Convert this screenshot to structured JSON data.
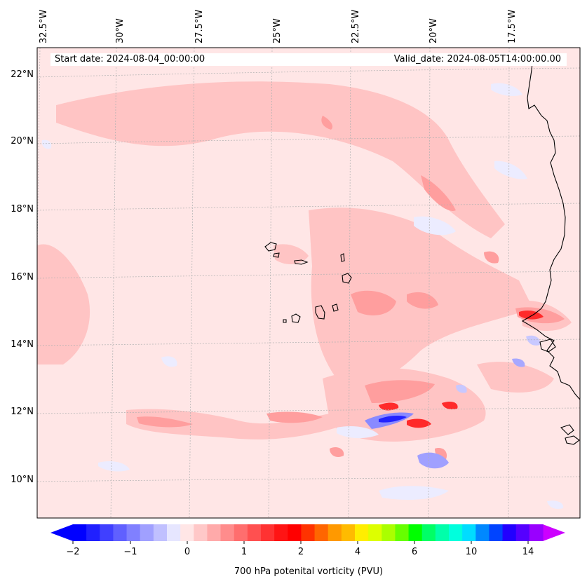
{
  "map": {
    "start_date": "Start date: 2024-08-04_00:00:00",
    "valid_date": "Valid_date: 2024-08-05T14:00:00.00",
    "lon_labels": [
      "32.5°W",
      "30°W",
      "27.5°W",
      "25°W",
      "22.5°W",
      "20°W",
      "17.5°W"
    ],
    "lat_labels": [
      "22°N",
      "20°N",
      "18°N",
      "16°N",
      "14°N",
      "12°N",
      "10°N"
    ]
  },
  "colorbar": {
    "label": "700 hPa potenital vorticity (PVU)",
    "tick_labels": [
      "−2",
      "−1",
      "0",
      "1",
      "2",
      "4",
      "6",
      "10",
      "14"
    ],
    "colors": [
      "#0000ff",
      "#2020ff",
      "#4040ff",
      "#6060ff",
      "#8080ff",
      "#a0a0ff",
      "#c0c0ff",
      "#e6e6ff",
      "#ffe6e6",
      "#ffc8c8",
      "#ffaaaa",
      "#ff8c8c",
      "#ff6e6e",
      "#ff5050",
      "#ff3232",
      "#ff1414",
      "#ff0000",
      "#ff3300",
      "#ff6600",
      "#ff9900",
      "#ffbb00",
      "#ffee00",
      "#ddff00",
      "#aaff00",
      "#66ff00",
      "#00ff00",
      "#00ff66",
      "#00ffaa",
      "#00ffdd",
      "#00ddff",
      "#0088ff",
      "#0044ff",
      "#2200ff",
      "#5500ff",
      "#9900ff"
    ],
    "extend_min_color": "#0000ff",
    "extend_max_color": "#cc00ff"
  },
  "colors": {
    "background_field": "#ffe6e6",
    "light_red": "#ffc0c0",
    "medium_red": "#ff9696",
    "strong_red": "#ff3030",
    "light_blue": "#e8e8ff",
    "medium_blue": "#8888ff",
    "strong_blue": "#2020ff",
    "coastline": "#000000"
  }
}
